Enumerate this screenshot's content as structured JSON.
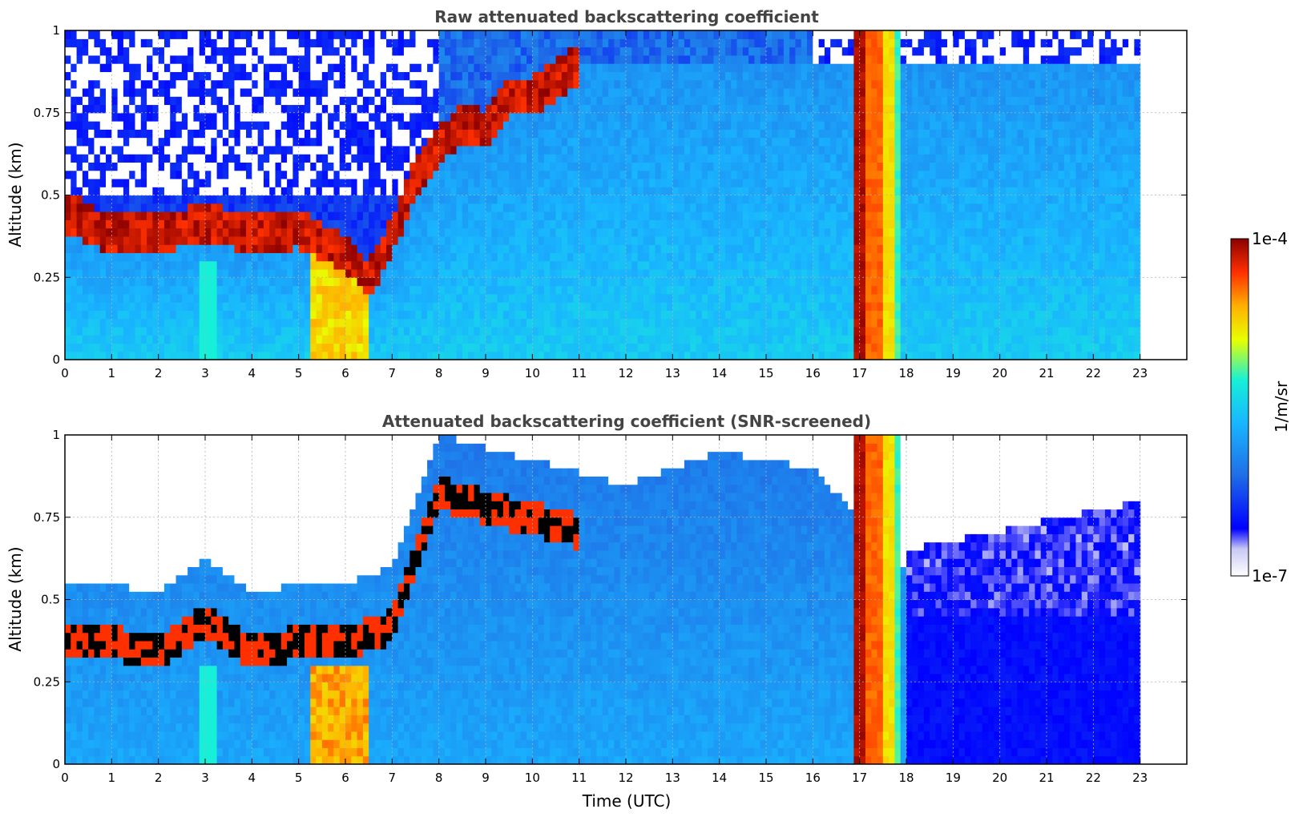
{
  "colors": {
    "background": "#ffffff",
    "title": "#444444",
    "grid": "#b0b0b0",
    "colormap": [
      "#ffffff",
      "#c8c8f5",
      "#0000ff",
      "#1f6fe6",
      "#19b4ff",
      "#16f0d8",
      "#e8ff00",
      "#ffb000",
      "#ff3000",
      "#8b0000"
    ]
  },
  "chart_data": [
    {
      "type": "heatmap",
      "title": "Raw attenuated backscattering coefficient",
      "xlabel": "",
      "ylabel": "Altitude (km)",
      "xlim": [
        0,
        24
      ],
      "ylim": [
        0,
        1
      ],
      "x_ticks": [
        0,
        1,
        2,
        3,
        4,
        5,
        6,
        7,
        8,
        9,
        10,
        11,
        12,
        13,
        14,
        15,
        16,
        17,
        18,
        19,
        20,
        21,
        22,
        23
      ],
      "x_tick_labels": [
        "0",
        "1",
        "2",
        "3",
        "4",
        "5",
        "6",
        "7",
        "8",
        "9",
        "10",
        "11",
        "12",
        "13",
        "14",
        "15",
        "16",
        "17",
        "18",
        "19",
        "20",
        "21",
        "22",
        "23"
      ],
      "y_ticks": [
        0,
        0.25,
        0.5,
        0.75,
        1
      ],
      "y_tick_labels": [
        "0",
        "0.25",
        "0.5",
        "0.75",
        "1"
      ],
      "grid": true,
      "data_extent_hours": [
        0,
        23
      ],
      "features": {
        "boundary_layer_top_km": [
          [
            0.0,
            0.45
          ],
          [
            1.0,
            0.38
          ],
          [
            2.0,
            0.38
          ],
          [
            3.0,
            0.42
          ],
          [
            4.0,
            0.38
          ],
          [
            5.0,
            0.4
          ],
          [
            5.5,
            0.35
          ],
          [
            6.0,
            0.32
          ],
          [
            6.5,
            0.24
          ],
          [
            7.0,
            0.38
          ],
          [
            7.5,
            0.55
          ],
          [
            8.0,
            0.65
          ],
          [
            8.5,
            0.72
          ],
          [
            9.0,
            0.7
          ],
          [
            9.5,
            0.8
          ],
          [
            10.0,
            0.8
          ],
          [
            10.5,
            0.85
          ],
          [
            11.0,
            0.9
          ]
        ],
        "precipitation_band_hours": [
          16.85,
          17.85
        ],
        "noise_onset_km_night": 0.5,
        "noise_onset_km_late": 0.3
      }
    },
    {
      "type": "heatmap",
      "title": "Attenuated backscattering coefficient (SNR-screened)",
      "xlabel": "Time (UTC)",
      "ylabel": "Altitude (km)",
      "xlim": [
        0,
        24
      ],
      "ylim": [
        0,
        1
      ],
      "x_ticks": [
        0,
        1,
        2,
        3,
        4,
        5,
        6,
        7,
        8,
        9,
        10,
        11,
        12,
        13,
        14,
        15,
        16,
        17,
        18,
        19,
        20,
        21,
        22,
        23
      ],
      "x_tick_labels": [
        "0",
        "1",
        "2",
        "3",
        "4",
        "5",
        "6",
        "7",
        "8",
        "9",
        "10",
        "11",
        "12",
        "13",
        "14",
        "15",
        "16",
        "17",
        "18",
        "19",
        "20",
        "21",
        "22",
        "23"
      ],
      "y_ticks": [
        0,
        0.25,
        0.5,
        0.75,
        1
      ],
      "y_tick_labels": [
        "0",
        "0.25",
        "0.5",
        "0.75",
        "1"
      ],
      "grid": true,
      "data_extent_hours": [
        0,
        23
      ],
      "features": {
        "screened_top_km": [
          [
            0.0,
            0.55
          ],
          [
            1.0,
            0.55
          ],
          [
            2.0,
            0.52
          ],
          [
            3.0,
            0.62
          ],
          [
            4.0,
            0.52
          ],
          [
            5.0,
            0.55
          ],
          [
            6.0,
            0.55
          ],
          [
            7.0,
            0.6
          ],
          [
            8.0,
            1.0
          ],
          [
            12.0,
            0.85
          ],
          [
            14.0,
            0.95
          ],
          [
            16.0,
            0.9
          ],
          [
            18.0,
            0.6
          ],
          [
            23.0,
            0.75
          ]
        ],
        "precipitation_band_hours": [
          16.85,
          17.85
        ]
      }
    }
  ],
  "colorbar": {
    "max_label": "1e-4",
    "min_label": "1e-7",
    "unit_label": "1/m/sr",
    "scale": "log"
  }
}
